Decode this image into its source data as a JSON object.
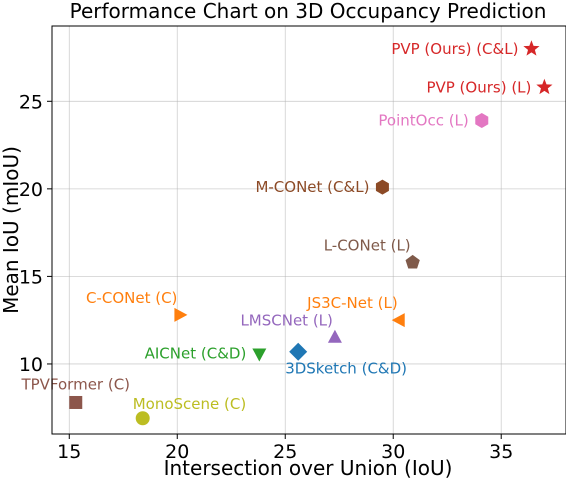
{
  "chart_data": {
    "type": "scatter",
    "title": "Performance Chart on 3D Occupancy Prediction",
    "xlabel": "Intersection over Union (IoU)",
    "ylabel": "Mean IoU (mIoU)",
    "xlim": [
      14.2,
      38.0
    ],
    "ylim": [
      6.0,
      29.3
    ],
    "xticks": [
      15,
      20,
      25,
      30,
      35
    ],
    "yticks": [
      10,
      15,
      20,
      25
    ],
    "grid": true,
    "points": [
      {
        "label": "PVP (Ours) (C&L)",
        "x": 36.4,
        "y": 28.0,
        "marker": "star",
        "color": "#d62728",
        "label_pos": "left"
      },
      {
        "label": "PVP (Ours)  (L)",
        "x": 37.0,
        "y": 25.8,
        "marker": "star",
        "color": "#d62728",
        "label_pos": "left"
      },
      {
        "label": "PointOcc (L)",
        "x": 34.1,
        "y": 23.9,
        "marker": "hexagon",
        "color": "#e377c2",
        "label_pos": "left"
      },
      {
        "label": "M-CONet (C&L)",
        "x": 29.5,
        "y": 20.1,
        "marker": "hexagon",
        "color": "#8c4a26",
        "label_pos": "left"
      },
      {
        "label": "L-CONet (L)",
        "x": 30.9,
        "y": 15.8,
        "marker": "pentagon",
        "color": "#7f5a4a",
        "label_pos": "above-left"
      },
      {
        "label": "C-CONet (C)",
        "x": 20.1,
        "y": 12.8,
        "marker": "triangle-right",
        "color": "#ff7f0e",
        "label_pos": "above-left"
      },
      {
        "label": "JS3C-Net (L)",
        "x": 30.3,
        "y": 12.5,
        "marker": "triangle-left",
        "color": "#ff7f0e",
        "label_pos": "above-left"
      },
      {
        "label": "LMSCNet (L)",
        "x": 27.3,
        "y": 11.5,
        "marker": "triangle-up",
        "color": "#9467bd",
        "label_pos": "above-left"
      },
      {
        "label": "AICNet (C&D)",
        "x": 23.8,
        "y": 10.6,
        "marker": "triangle-down",
        "color": "#2ca02c",
        "label_pos": "left"
      },
      {
        "label": "3DSketch (C&D)",
        "x": 25.6,
        "y": 10.7,
        "marker": "diamond",
        "color": "#1f77b4",
        "label_pos": "below"
      },
      {
        "label": "TPVFormer (C)",
        "x": 15.3,
        "y": 7.8,
        "marker": "square",
        "color": "#8c564b",
        "label_pos": "above"
      },
      {
        "label": "MonoScene (C)",
        "x": 18.4,
        "y": 6.9,
        "marker": "circle",
        "color": "#bcbd22",
        "label_pos": "above-right"
      }
    ]
  }
}
